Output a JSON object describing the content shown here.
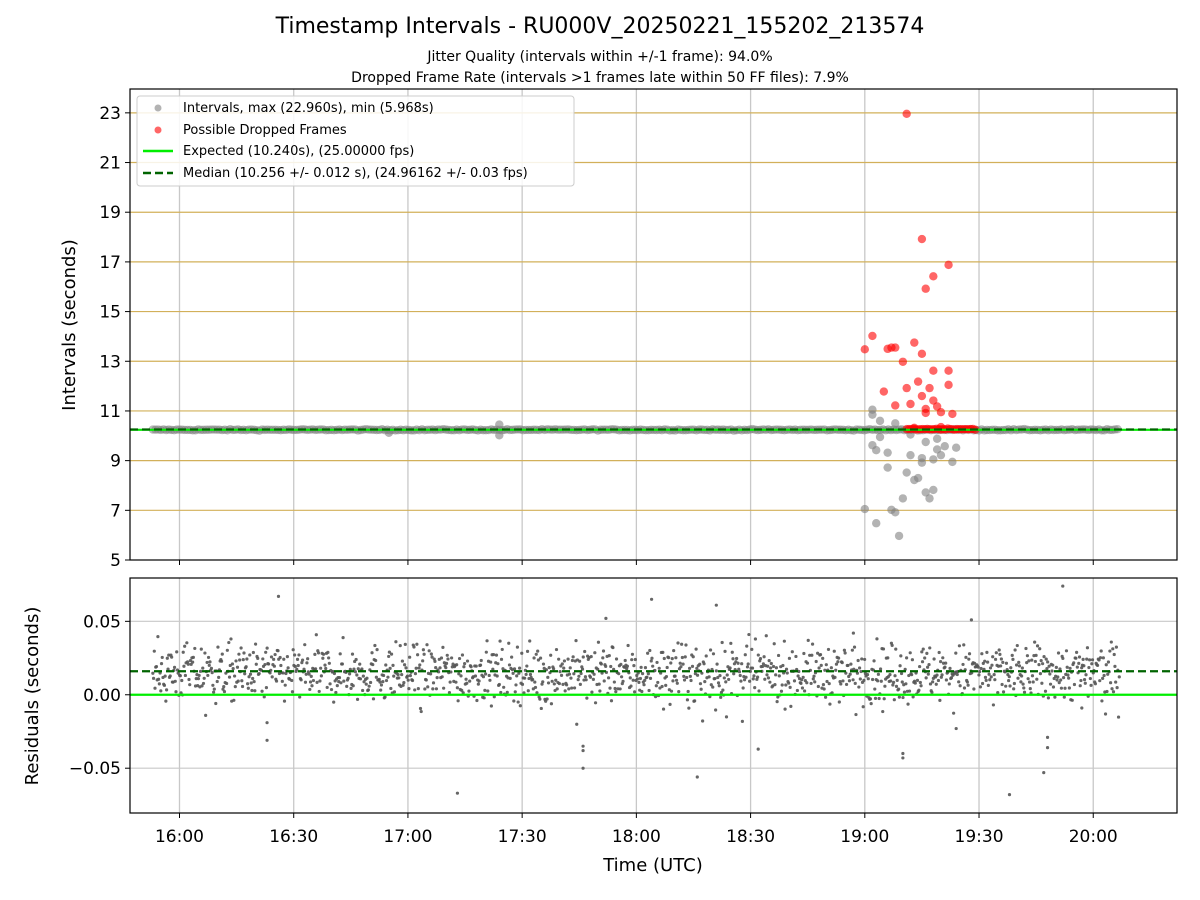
{
  "title": "Timestamp Intervals - RU000V_20250221_155202_213574",
  "subtitle_1": "Jitter Quality (intervals within +/-1 frame): 94.0%",
  "subtitle_2": "Dropped Frame Rate (intervals >1 frames late within 50 FF files): 7.9%",
  "colors": {
    "intervals": "#808080",
    "dropped": "#ff0000",
    "expected": "#00ee00",
    "median": "#006400",
    "interval_grid": "#d2b05a",
    "time_grid": "#c8c8c8",
    "residual_points": "#555555"
  },
  "chart_data": [
    {
      "type": "scatter",
      "name": "intervals-panel",
      "ylabel": "Intervals (seconds)",
      "ylim": [
        5,
        23.96
      ],
      "yticks": [
        "5",
        "7",
        "9",
        "11",
        "13",
        "15",
        "17",
        "19",
        "21",
        "23"
      ],
      "xlim": [
        "15:47",
        "20:22"
      ],
      "grid": "horizontal lines at odd seconds, vertical lines at half hours",
      "legend_position": "top-left",
      "legend": [
        "Intervals, max (22.960s), min (5.968s)",
        "Possible Dropped Frames",
        "Expected (10.240s), (25.00000 fps)",
        "Median (10.256 +/- 0.012 s), (24.96162 +/- 0.03 fps)"
      ],
      "expected_interval": 10.24,
      "median_interval": 10.256,
      "series": [
        {
          "name": "Intervals, max (22.960s), min (5.968s)",
          "note": "dense baseline cluster at about 10.24 s from 15:53 to 20:07",
          "baseline": {
            "from": "15:53",
            "to": "20:07",
            "value": 10.24
          },
          "outliers": [
            {
              "x": "17:24",
              "y": 10.45
            },
            {
              "x": "17:24",
              "y": 10.02
            },
            {
              "x": "16:55",
              "y": 10.12
            },
            {
              "x": "19:00",
              "y": 7.05
            },
            {
              "x": "19:03",
              "y": 6.48
            },
            {
              "x": "19:07",
              "y": 7.02
            },
            {
              "x": "19:08",
              "y": 6.92
            },
            {
              "x": "19:09",
              "y": 5.97
            },
            {
              "x": "19:10",
              "y": 7.48
            },
            {
              "x": "19:02",
              "y": 9.62
            },
            {
              "x": "19:03",
              "y": 9.42
            },
            {
              "x": "19:04",
              "y": 9.95
            },
            {
              "x": "19:06",
              "y": 8.72
            },
            {
              "x": "19:06",
              "y": 9.32
            },
            {
              "x": "19:02",
              "y": 10.85
            },
            {
              "x": "19:02",
              "y": 11.05
            },
            {
              "x": "19:04",
              "y": 10.6
            },
            {
              "x": "19:08",
              "y": 10.5
            },
            {
              "x": "19:11",
              "y": 8.52
            },
            {
              "x": "19:12",
              "y": 9.22
            },
            {
              "x": "19:13",
              "y": 8.22
            },
            {
              "x": "19:14",
              "y": 8.3
            },
            {
              "x": "19:15",
              "y": 9.1
            },
            {
              "x": "19:15",
              "y": 8.92
            },
            {
              "x": "19:16",
              "y": 7.72
            },
            {
              "x": "19:17",
              "y": 7.48
            },
            {
              "x": "19:18",
              "y": 9.05
            },
            {
              "x": "19:18",
              "y": 7.82
            },
            {
              "x": "19:19",
              "y": 9.88
            },
            {
              "x": "19:19",
              "y": 9.45
            },
            {
              "x": "19:20",
              "y": 9.22
            },
            {
              "x": "19:21",
              "y": 9.58
            },
            {
              "x": "19:23",
              "y": 8.95
            },
            {
              "x": "19:24",
              "y": 9.52
            },
            {
              "x": "19:12",
              "y": 10.05
            },
            {
              "x": "19:16",
              "y": 9.75
            }
          ]
        },
        {
          "name": "Possible Dropped Frames",
          "baseline": {
            "from": "19:11",
            "to": "19:29",
            "value": 10.27
          },
          "points": [
            {
              "x": "19:11",
              "y": 22.96
            },
            {
              "x": "19:15",
              "y": 17.92
            },
            {
              "x": "19:16",
              "y": 15.92
            },
            {
              "x": "19:18",
              "y": 16.42
            },
            {
              "x": "19:22",
              "y": 16.88
            },
            {
              "x": "19:00",
              "y": 13.48
            },
            {
              "x": "19:02",
              "y": 14.02
            },
            {
              "x": "19:06",
              "y": 13.5
            },
            {
              "x": "19:07",
              "y": 13.55
            },
            {
              "x": "19:08",
              "y": 13.55
            },
            {
              "x": "19:13",
              "y": 13.75
            },
            {
              "x": "19:15",
              "y": 13.3
            },
            {
              "x": "19:10",
              "y": 12.98
            },
            {
              "x": "19:18",
              "y": 12.62
            },
            {
              "x": "19:22",
              "y": 12.62
            },
            {
              "x": "19:14",
              "y": 12.18
            },
            {
              "x": "19:22",
              "y": 12.05
            },
            {
              "x": "19:05",
              "y": 11.78
            },
            {
              "x": "19:11",
              "y": 11.92
            },
            {
              "x": "19:17",
              "y": 11.92
            },
            {
              "x": "19:15",
              "y": 11.6
            },
            {
              "x": "19:08",
              "y": 11.22
            },
            {
              "x": "19:12",
              "y": 11.28
            },
            {
              "x": "19:18",
              "y": 11.42
            },
            {
              "x": "19:19",
              "y": 11.18
            },
            {
              "x": "19:20",
              "y": 10.95
            },
            {
              "x": "19:16",
              "y": 11.08
            },
            {
              "x": "19:16",
              "y": 10.92
            },
            {
              "x": "19:23",
              "y": 10.88
            },
            {
              "x": "19:13",
              "y": 10.32
            },
            {
              "x": "19:20",
              "y": 10.35
            }
          ]
        }
      ]
    },
    {
      "type": "scatter",
      "name": "residuals-panel",
      "xlabel": "Time (UTC)",
      "ylabel": "Residuals (seconds)",
      "ylim": [
        -0.0805,
        0.0795
      ],
      "yticks": [
        "−0.05",
        "0.00",
        "0.05"
      ],
      "xticks": [
        "16:00",
        "16:30",
        "17:00",
        "17:30",
        "18:00",
        "18:30",
        "19:00",
        "19:30",
        "20:00"
      ],
      "xlim": [
        "15:47",
        "20:22"
      ],
      "expected_residual": 0.0,
      "median_residual": 0.016,
      "note": "about 1300 residual points between 15:53 and 20:07, centered near 0.015 s, spread about -0.005 to 0.035 s",
      "outliers": [
        {
          "x": "16:26",
          "y": 0.067
        },
        {
          "x": "16:23",
          "y": -0.031
        },
        {
          "x": "16:23",
          "y": -0.019
        },
        {
          "x": "17:13",
          "y": -0.067
        },
        {
          "x": "17:46",
          "y": -0.035
        },
        {
          "x": "17:46",
          "y": -0.038
        },
        {
          "x": "17:46",
          "y": -0.05
        },
        {
          "x": "17:52",
          "y": 0.052
        },
        {
          "x": "18:04",
          "y": 0.065
        },
        {
          "x": "18:16",
          "y": -0.056
        },
        {
          "x": "18:21",
          "y": 0.061
        },
        {
          "x": "18:32",
          "y": -0.037
        },
        {
          "x": "19:10",
          "y": -0.043
        },
        {
          "x": "19:10",
          "y": -0.04
        },
        {
          "x": "19:24",
          "y": -0.023
        },
        {
          "x": "19:28",
          "y": 0.051
        },
        {
          "x": "19:38",
          "y": -0.068
        },
        {
          "x": "19:52",
          "y": 0.074
        },
        {
          "x": "19:47",
          "y": -0.053
        },
        {
          "x": "19:48",
          "y": -0.036
        },
        {
          "x": "19:48",
          "y": -0.029
        },
        {
          "x": "19:57",
          "y": -0.009
        },
        {
          "x": "18:57",
          "y": 0.042
        }
      ]
    }
  ]
}
